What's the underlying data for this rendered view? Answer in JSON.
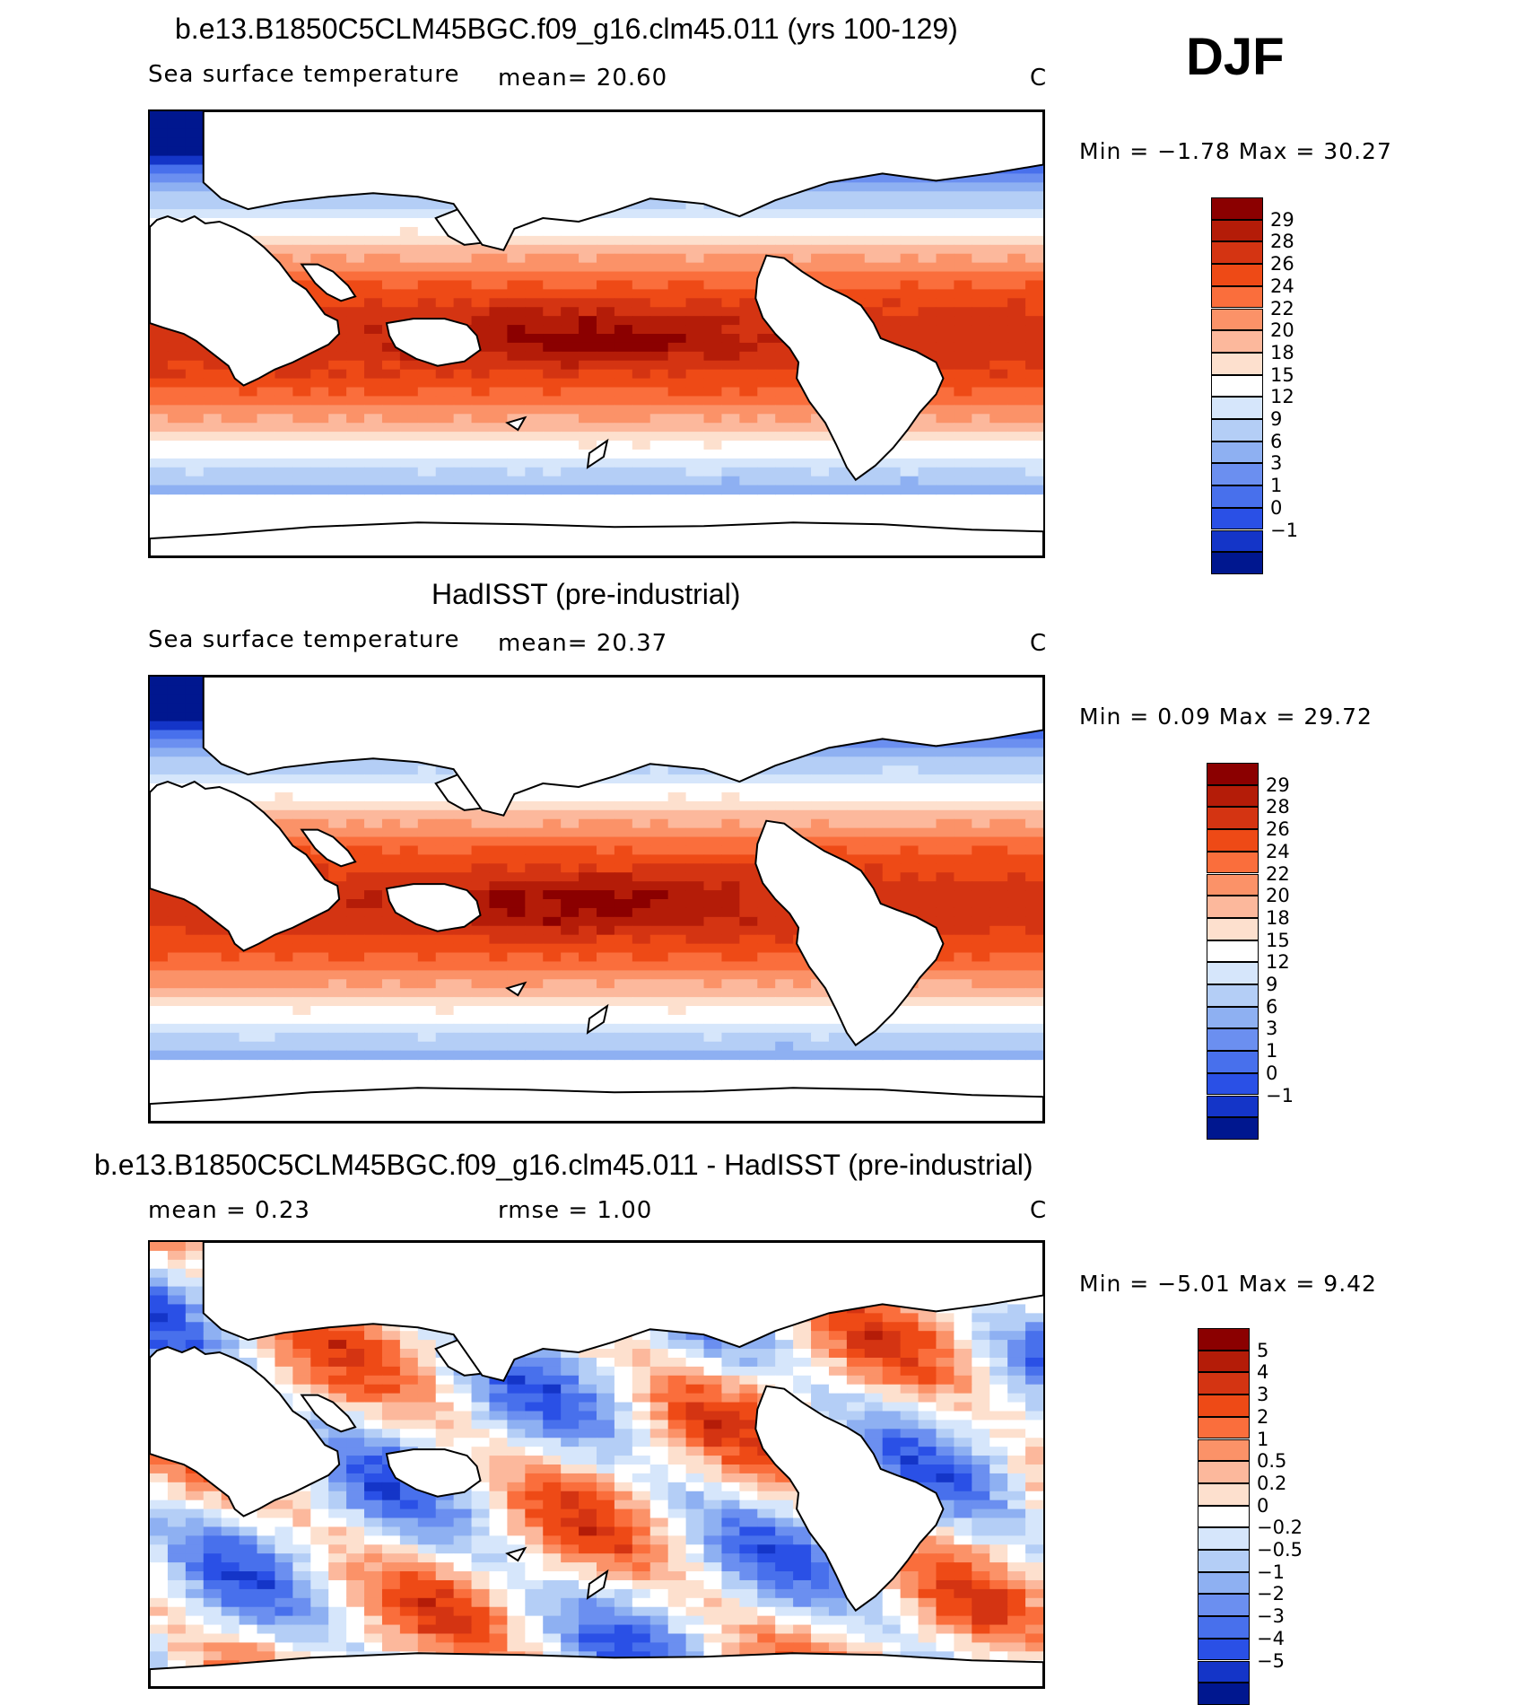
{
  "season": "DJF",
  "panels": [
    {
      "title": "b.e13.B1850C5CLM45BGC.f09_g16.clm45.011 (yrs 100-129)",
      "left_label": "Sea surface temperature",
      "stat1": "mean=  20.60",
      "stat2": "",
      "unit": "C",
      "minmax": "Min =  −1.78  Max =   30.27",
      "field": "model",
      "colorbar": {
        "labels": [
          "29",
          "28",
          "26",
          "24",
          "22",
          "20",
          "18",
          "15",
          "12",
          "9",
          "6",
          "3",
          "1",
          "0",
          "−1"
        ],
        "colors": [
          "#8b0000",
          "#b41c08",
          "#d43412",
          "#ee4a16",
          "#fa6e3c",
          "#fb9268",
          "#fcb89c",
          "#fde0ce",
          "#ffffff",
          "#d6e6fb",
          "#b4cef6",
          "#8eb0f2",
          "#6b8ff0",
          "#4870ec",
          "#2a50e6",
          "#1435c8",
          "#00178f"
        ]
      }
    },
    {
      "title": "HadISST (pre-industrial)",
      "left_label": "Sea surface temperature",
      "stat1": "mean=  20.37",
      "stat2": "",
      "unit": "C",
      "minmax": "Min =   0.09  Max =   29.72",
      "field": "obs",
      "colorbar": {
        "labels": [
          "29",
          "28",
          "26",
          "24",
          "22",
          "20",
          "18",
          "15",
          "12",
          "9",
          "6",
          "3",
          "1",
          "0",
          "−1"
        ],
        "colors": [
          "#8b0000",
          "#b41c08",
          "#d43412",
          "#ee4a16",
          "#fa6e3c",
          "#fb9268",
          "#fcb89c",
          "#fde0ce",
          "#ffffff",
          "#d6e6fb",
          "#b4cef6",
          "#8eb0f2",
          "#6b8ff0",
          "#4870ec",
          "#2a50e6",
          "#1435c8",
          "#00178f"
        ]
      }
    },
    {
      "title": "b.e13.B1850C5CLM45BGC.f09_g16.clm45.011 - HadISST (pre-industrial)",
      "left_label": "mean =    0.23",
      "stat1": "rmse =    1.00",
      "stat2": "",
      "unit": "C",
      "minmax": "Min =  −5.01  Max =    9.42",
      "field": "diff",
      "colorbar": {
        "labels": [
          "5",
          "4",
          "3",
          "2",
          "1",
          "0.5",
          "0.2",
          "0",
          "−0.2",
          "−0.5",
          "−1",
          "−2",
          "−3",
          "−4",
          "−5"
        ],
        "colors": [
          "#8b0000",
          "#b41c08",
          "#d43412",
          "#ee4a16",
          "#fa6e3c",
          "#fb9268",
          "#fcb89c",
          "#fde0ce",
          "#ffffff",
          "#d6e6fb",
          "#b4cef6",
          "#8eb0f2",
          "#6b8ff0",
          "#4870ec",
          "#2a50e6",
          "#1435c8",
          "#00178f"
        ]
      }
    }
  ]
}
